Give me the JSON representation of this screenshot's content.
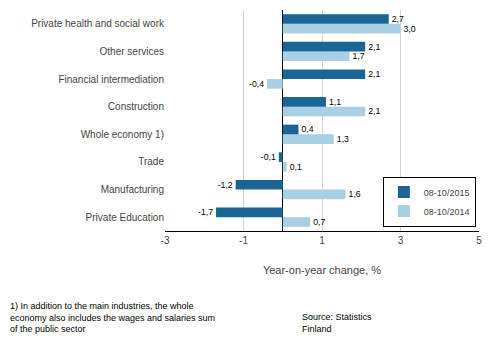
{
  "chart_data": {
    "type": "bar",
    "orientation": "horizontal",
    "categories": [
      "Private Education",
      "Manufacturing",
      "Trade",
      "Whole economy 1)",
      "Construction",
      "Financial intermediation",
      "Other services",
      "Private health and social work"
    ],
    "series": [
      {
        "name": "08-10/2015",
        "color": "#1a6496",
        "values": [
          -1.7,
          -1.2,
          -0.1,
          0.4,
          1.1,
          2.1,
          2.1,
          2.7
        ],
        "value_labels": [
          "-1,7",
          "-1,2",
          "-0,1",
          "0,4",
          "1,1",
          "2,1",
          "2,1",
          "2,7"
        ]
      },
      {
        "name": "08-10/2014",
        "color": "#aacfe4",
        "values": [
          0.7,
          1.6,
          0.1,
          1.3,
          2.1,
          -0.4,
          1.7,
          3.0
        ],
        "value_labels": [
          "0,7",
          "1,6",
          "0,1",
          "1,3",
          "2,1",
          "-0,4",
          "1,7",
          "3,0"
        ]
      }
    ],
    "xlabel": "Year-on-year change, %",
    "xlim": [
      -3,
      5
    ],
    "xticks": [
      -3,
      -1,
      1,
      3,
      5
    ],
    "grid": true,
    "legend": "lower right",
    "data_labels": true,
    "annotations": [
      "1) In addition to the main industries, the whole\neconomy also includes the wages and salaries sum\nof the public sector",
      "Source: Statistics\nFinland"
    ]
  }
}
